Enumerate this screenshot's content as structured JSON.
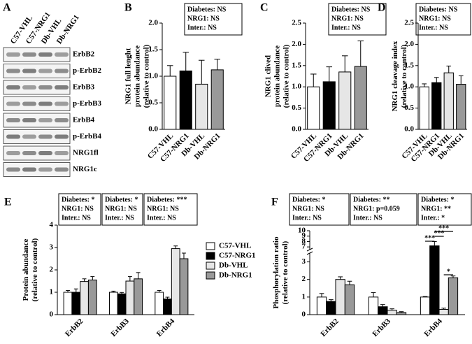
{
  "blot": {
    "label": "A",
    "columns": [
      "C57-VHL",
      "C57-NRG1",
      "Db-VHL",
      "Db-NRG1"
    ],
    "rows": [
      "ErbB2",
      "p-ErbB2",
      "ErbB3",
      "p-ErbB3",
      "ErbB4",
      "p-ErbB4",
      "NRG1fl",
      "NRG1c"
    ]
  },
  "chart_data": [
    {
      "type": "bar",
      "label": "B",
      "ylabel": [
        "NRG1 full lenght",
        "protein abundance",
        "(relative to control)"
      ],
      "stats": [
        [
          "Diabetes: NS",
          "NRG1: NS",
          "Inter.: NS"
        ]
      ],
      "categories": [
        "C57-VHL",
        "C57-NRG1",
        "Db-VHL",
        "Db-NRG1"
      ],
      "values": [
        1.0,
        1.1,
        0.85,
        1.12
      ],
      "errors": [
        0.2,
        0.35,
        0.45,
        0.2
      ],
      "colors": [
        "#ffffff",
        "#000000",
        "#e6e6e6",
        "#999999"
      ],
      "ylim": [
        0,
        2
      ],
      "yticks": [
        {
          "value": 0,
          "label": "0.0"
        },
        {
          "value": 0.5,
          "label": "0.5"
        },
        {
          "value": 1,
          "label": "1.0"
        },
        {
          "value": 1.5,
          "label": "1.5"
        },
        {
          "value": 2,
          "label": "2.0"
        }
      ]
    },
    {
      "type": "bar",
      "label": "C",
      "ylabel": [
        "NRG1 clived",
        "protein abundance",
        "(relative to control)"
      ],
      "stats": [
        [
          "Diabetes: NS",
          "NRG1: NS",
          "Inter.: NS"
        ]
      ],
      "categories": [
        "C57-VHL",
        "C57-NRG1",
        "Db-VHL",
        "Db-NRG1"
      ],
      "values": [
        1.0,
        1.12,
        1.35,
        1.48
      ],
      "errors": [
        0.3,
        0.35,
        0.38,
        0.6
      ],
      "colors": [
        "#ffffff",
        "#000000",
        "#e6e6e6",
        "#999999"
      ],
      "ylim": [
        0,
        2.5
      ],
      "yticks": [
        {
          "value": 0,
          "label": "0.0"
        },
        {
          "value": 0.5,
          "label": "0.5"
        },
        {
          "value": 1,
          "label": "1.0"
        },
        {
          "value": 1.5,
          "label": "1.5"
        },
        {
          "value": 2,
          "label": "2.0"
        },
        {
          "value": 2.5,
          "label": "2.5"
        }
      ]
    },
    {
      "type": "bar",
      "label": "D",
      "ylabel": [
        "NRG1 cleavage index",
        "(relative to control)"
      ],
      "stats": [
        [
          "Diabetes: NS",
          "NRG1: NS",
          "Inter.: NS"
        ]
      ],
      "categories": [
        "C57-VHL",
        "C57-NRG1",
        "Db-VHL",
        "Db-NRG1"
      ],
      "values": [
        1.0,
        1.1,
        1.33,
        1.06
      ],
      "errors": [
        0.07,
        0.12,
        0.16,
        0.2
      ],
      "colors": [
        "#ffffff",
        "#000000",
        "#e6e6e6",
        "#999999"
      ],
      "ylim": [
        0,
        2.5
      ],
      "yticks": [
        {
          "value": 0,
          "label": "0.0"
        },
        {
          "value": 0.5,
          "label": "0.5"
        },
        {
          "value": 1,
          "label": "1.0"
        },
        {
          "value": 1.5,
          "label": "1.5"
        },
        {
          "value": 2,
          "label": "2.0"
        },
        {
          "value": 2.5,
          "label": "2.5"
        }
      ]
    },
    {
      "type": "grouped-bar",
      "label": "E",
      "ylabel": [
        "Protein abundance",
        "(relative to control)"
      ],
      "stats": [
        [
          "Diabetes: *",
          "NRG1: NS",
          "Inter.: NS"
        ],
        [
          "Diabetes: *",
          "NRG1: NS",
          "Inter.: NS"
        ],
        [
          "Diabetes: ***",
          "NRG1: NS",
          "Inter.: NS"
        ]
      ],
      "categories": [
        "ErbB2",
        "ErbB3",
        "ErbB4"
      ],
      "series": [
        {
          "name": "C57-VHL",
          "color": "#ffffff",
          "values": [
            1.0,
            1.0,
            1.0
          ],
          "errors": [
            0.08,
            0.05,
            0.08
          ]
        },
        {
          "name": "C57-NRG1",
          "color": "#000000",
          "values": [
            1.0,
            0.93,
            0.7
          ],
          "errors": [
            0.15,
            0.06,
            0.08
          ]
        },
        {
          "name": "Db-VHL",
          "color": "#e6e6e6",
          "values": [
            1.48,
            1.5,
            2.95
          ],
          "errors": [
            0.12,
            0.2,
            0.12
          ]
        },
        {
          "name": "Db-NRG1",
          "color": "#999999",
          "values": [
            1.55,
            1.6,
            2.5
          ],
          "errors": [
            0.15,
            0.28,
            0.25
          ]
        }
      ],
      "ylim": [
        0,
        4
      ],
      "yticks": [
        0,
        1,
        2,
        3,
        4
      ],
      "legend": "right"
    },
    {
      "type": "grouped-bar",
      "label": "F",
      "ylabel": [
        "Phosphorylation ratio",
        "(relative to control)"
      ],
      "stats": [
        [
          "Diabetes: *",
          "NRG1: NS",
          "Inter.: NS"
        ],
        [
          "Diabetes: **",
          "NRG1: p=0.059",
          "Inter.: NS"
        ],
        [
          "Diabetes: *",
          "NRG1: **",
          "Inter.: *"
        ]
      ],
      "categories": [
        "ErbB2",
        "ErbB3",
        "ErbB4"
      ],
      "series": [
        {
          "name": "C57-VHL",
          "color": "#ffffff",
          "values": [
            1.0,
            1.0,
            1.0
          ],
          "errors": [
            0.2,
            0.25,
            0.03
          ]
        },
        {
          "name": "C57-NRG1",
          "color": "#000000",
          "values": [
            0.75,
            0.45,
            7.2
          ],
          "errors": [
            0.1,
            0.12,
            0.8
          ]
        },
        {
          "name": "Db-VHL",
          "color": "#e6e6e6",
          "values": [
            2.0,
            0.25,
            0.3
          ],
          "errors": [
            0.15,
            0.08,
            0.07
          ]
        },
        {
          "name": "Db-NRG1",
          "color": "#999999",
          "values": [
            1.7,
            0.12,
            2.1
          ],
          "errors": [
            0.2,
            0.05,
            0.1
          ]
        }
      ],
      "ylim": [
        0,
        10
      ],
      "ybreak": [
        3.5,
        6.5
      ],
      "yticks": [
        0,
        1,
        2,
        3,
        7,
        8,
        9,
        10
      ],
      "significance": [
        {
          "category": 2,
          "series": [
            0,
            1
          ],
          "label": "***"
        },
        {
          "category": 2,
          "series": [
            1,
            2
          ],
          "label": "***"
        },
        {
          "category": 2,
          "series": [
            1,
            3
          ],
          "label": "***"
        },
        {
          "category": 2,
          "series": [
            2,
            3
          ],
          "label": "*"
        }
      ]
    }
  ]
}
